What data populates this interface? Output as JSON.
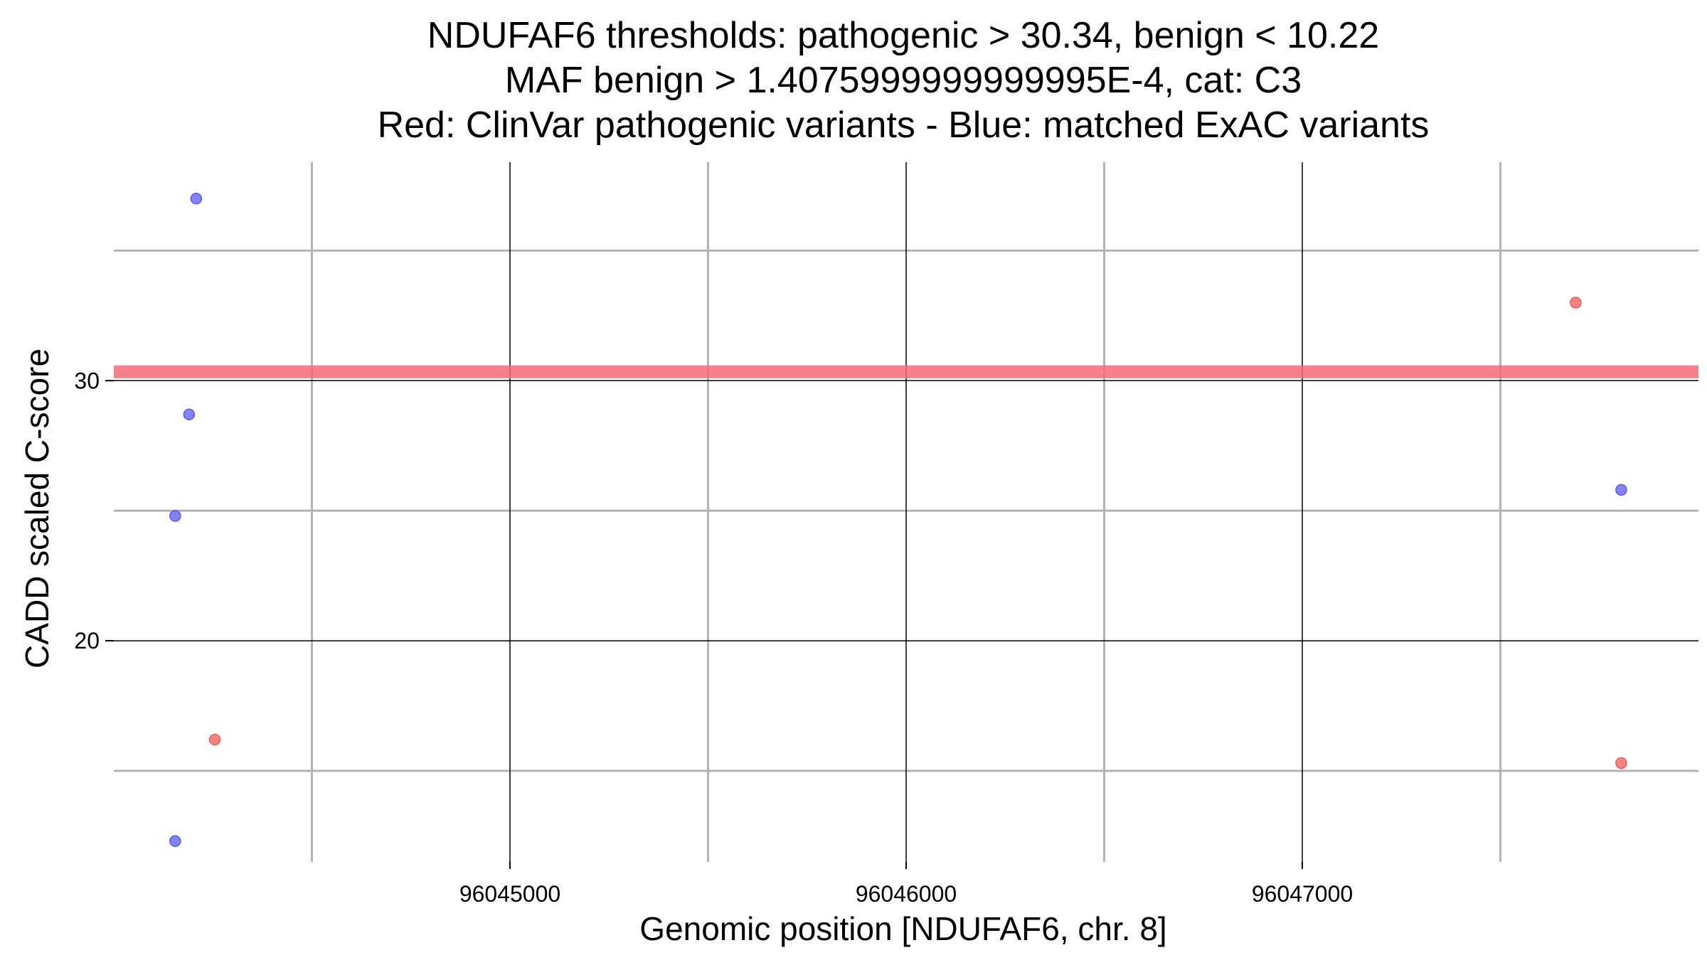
{
  "chart_data": {
    "type": "scatter",
    "title_lines": [
      "NDUFAF6 thresholds: pathogenic > 30.34, benign < 10.22",
      "MAF benign > 1.4075999999999995E-4, cat: C3",
      "Red: ClinVar pathogenic variants - Blue: matched ExAC variants"
    ],
    "xlabel": "Genomic position [NDUFAF6, chr. 8]",
    "ylabel": "CADD scaled C-score",
    "xlim": [
      96044000,
      96048000
    ],
    "ylim": [
      11.5,
      38.4
    ],
    "x_major_ticks": [
      96045000,
      96046000,
      96047000
    ],
    "x_tick_labels": [
      "96045000",
      "96046000",
      "96047000"
    ],
    "x_minor_grid": [
      96044500,
      96045500,
      96046500,
      96047500
    ],
    "y_major_ticks": [
      20,
      30
    ],
    "y_tick_labels": [
      "20",
      "30"
    ],
    "y_minor_grid": [
      15,
      25,
      35
    ],
    "threshold_line": {
      "y": 30.34,
      "color": "#f26b77"
    },
    "series": [
      {
        "color": "#f45a5a",
        "points": [
          {
            "x": 96044255,
            "y": 16.2
          },
          {
            "x": 96047690,
            "y": 33.0
          },
          {
            "x": 96047805,
            "y": 15.3
          }
        ]
      },
      {
        "color": "#5a5af4",
        "points": [
          {
            "x": 96044208,
            "y": 37.0
          },
          {
            "x": 96044190,
            "y": 28.7
          },
          {
            "x": 96044155,
            "y": 24.8
          },
          {
            "x": 96044155,
            "y": 12.3
          },
          {
            "x": 96047805,
            "y": 25.8
          }
        ]
      }
    ],
    "grid": true
  }
}
